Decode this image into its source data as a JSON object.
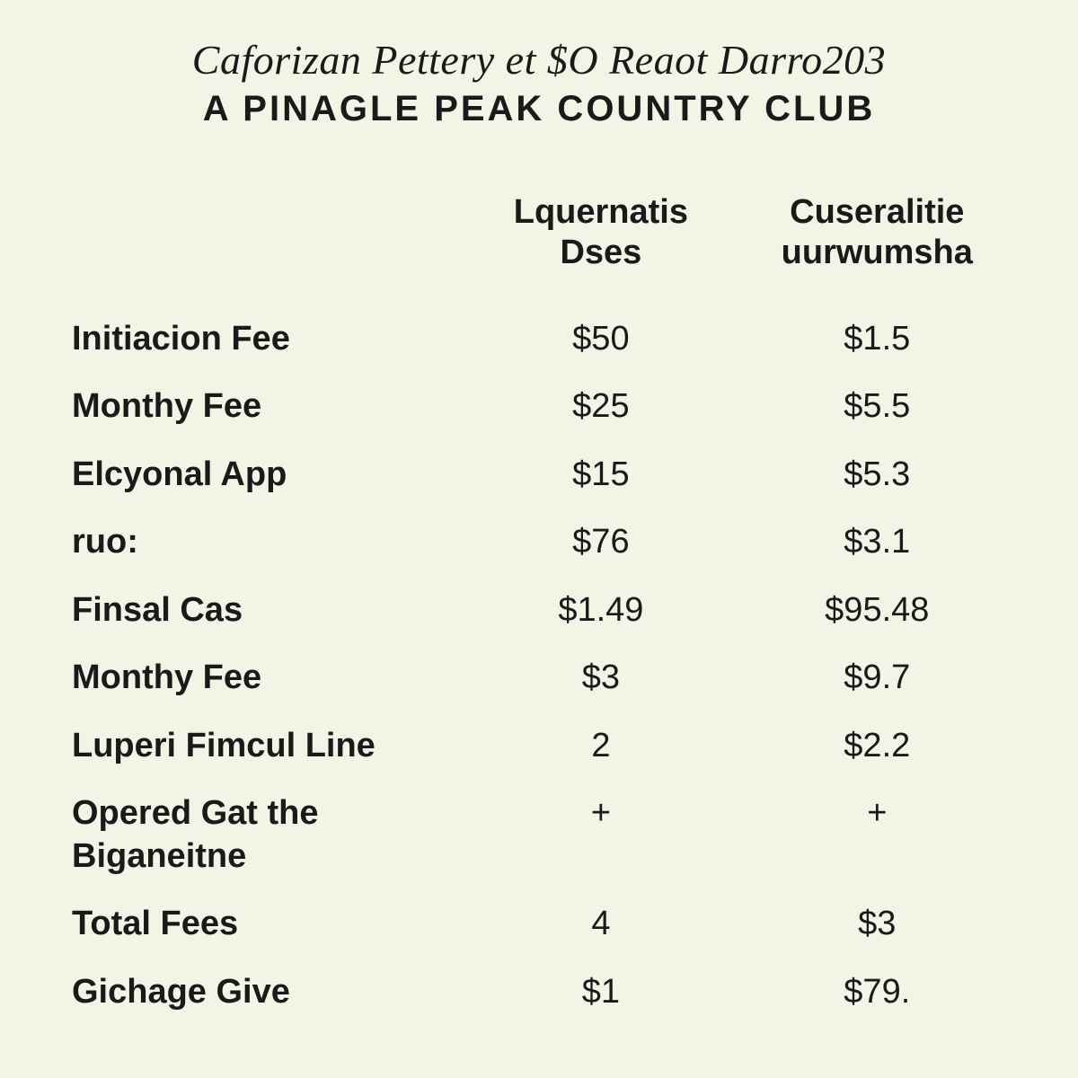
{
  "header": {
    "title": "Caforizan Pettery et $O Reaot Darro203",
    "subtitle": "A PINAGLE PEAK COUNTRY CLUB"
  },
  "table": {
    "type": "table",
    "background_color": "#f3f3e6",
    "text_color": "#1a1a1a",
    "header_fontsize": 38,
    "cell_fontsize": 38,
    "col_widths_pct": [
      42,
      29,
      29
    ],
    "columns": [
      {
        "label_line1": "Lquernatis",
        "label_line2": "Dses",
        "align": "center"
      },
      {
        "label_line1": "Cuseralitie",
        "label_line2": "uurwumsha",
        "align": "center"
      }
    ],
    "rows": [
      {
        "label": "Initiacion Fee",
        "c1": "$50",
        "c2": "$1.5"
      },
      {
        "label": "Monthy Fee",
        "c1": "$25",
        "c2": "$5.5"
      },
      {
        "label": "Elcyonal App",
        "c1": "$15",
        "c2": "$5.3"
      },
      {
        "label": "ruo:",
        "c1": "$76",
        "c2": "$3.1"
      },
      {
        "label": "Finsal Cas",
        "c1": "$1.49",
        "c2": "$95.48"
      },
      {
        "label": "Monthy Fee",
        "c1": "$3",
        "c2": "$9.7"
      },
      {
        "label": "Luperi Fimcul Line",
        "c1": "2",
        "c2": "$2.2"
      },
      {
        "label": "Opered Gat the Biganeitne",
        "c1": "+",
        "c2": "+"
      },
      {
        "label": "Total Fees",
        "c1": "4",
        "c2": "$3"
      },
      {
        "label": "Gichage Give",
        "c1": "$1",
        "c2": "$79."
      }
    ]
  }
}
